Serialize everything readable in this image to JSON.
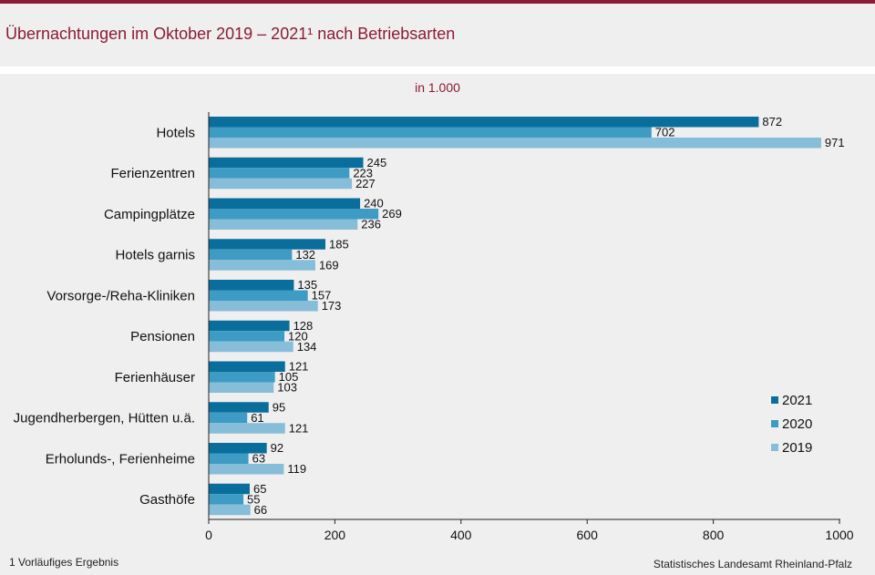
{
  "title": "Übernachtungen im Oktober 2019 – 2021¹ nach Betriebsarten",
  "subtitle": "in 1.000",
  "footnote": "1 Vorläufiges Ergebnis",
  "source": "Statistisches Landesamt Rheinland-Pfalz",
  "colors": {
    "brand": "#8b1c33",
    "series2021": "#0a6e9c",
    "series2020": "#3e9bc3",
    "series2019": "#86bdd9"
  },
  "chart_data": {
    "type": "bar",
    "orientation": "horizontal",
    "categories": [
      "Hotels",
      "Ferienzentren",
      "Campingplätze",
      "Hotels garnis",
      "Vorsorge-/Reha-Kliniken",
      "Pensionen",
      "Ferienhäuser",
      "Jugendherbergen, Hütten u.ä.",
      "Erholunds-, Ferienheime",
      "Gasthöfe"
    ],
    "series": [
      {
        "name": "2021",
        "color": "#0a6e9c",
        "values": [
          872,
          245,
          240,
          185,
          135,
          128,
          121,
          95,
          92,
          65
        ]
      },
      {
        "name": "2020",
        "color": "#3e9bc3",
        "values": [
          702,
          223,
          269,
          132,
          157,
          120,
          105,
          61,
          63,
          55
        ]
      },
      {
        "name": "2019",
        "color": "#86bdd9",
        "values": [
          971,
          227,
          236,
          169,
          173,
          134,
          103,
          121,
          119,
          66
        ]
      }
    ],
    "xlim": [
      0,
      1000
    ],
    "xticks": [
      "0",
      "200",
      "400",
      "600",
      "800",
      "1000"
    ],
    "grid": false,
    "legend_position": "right"
  }
}
